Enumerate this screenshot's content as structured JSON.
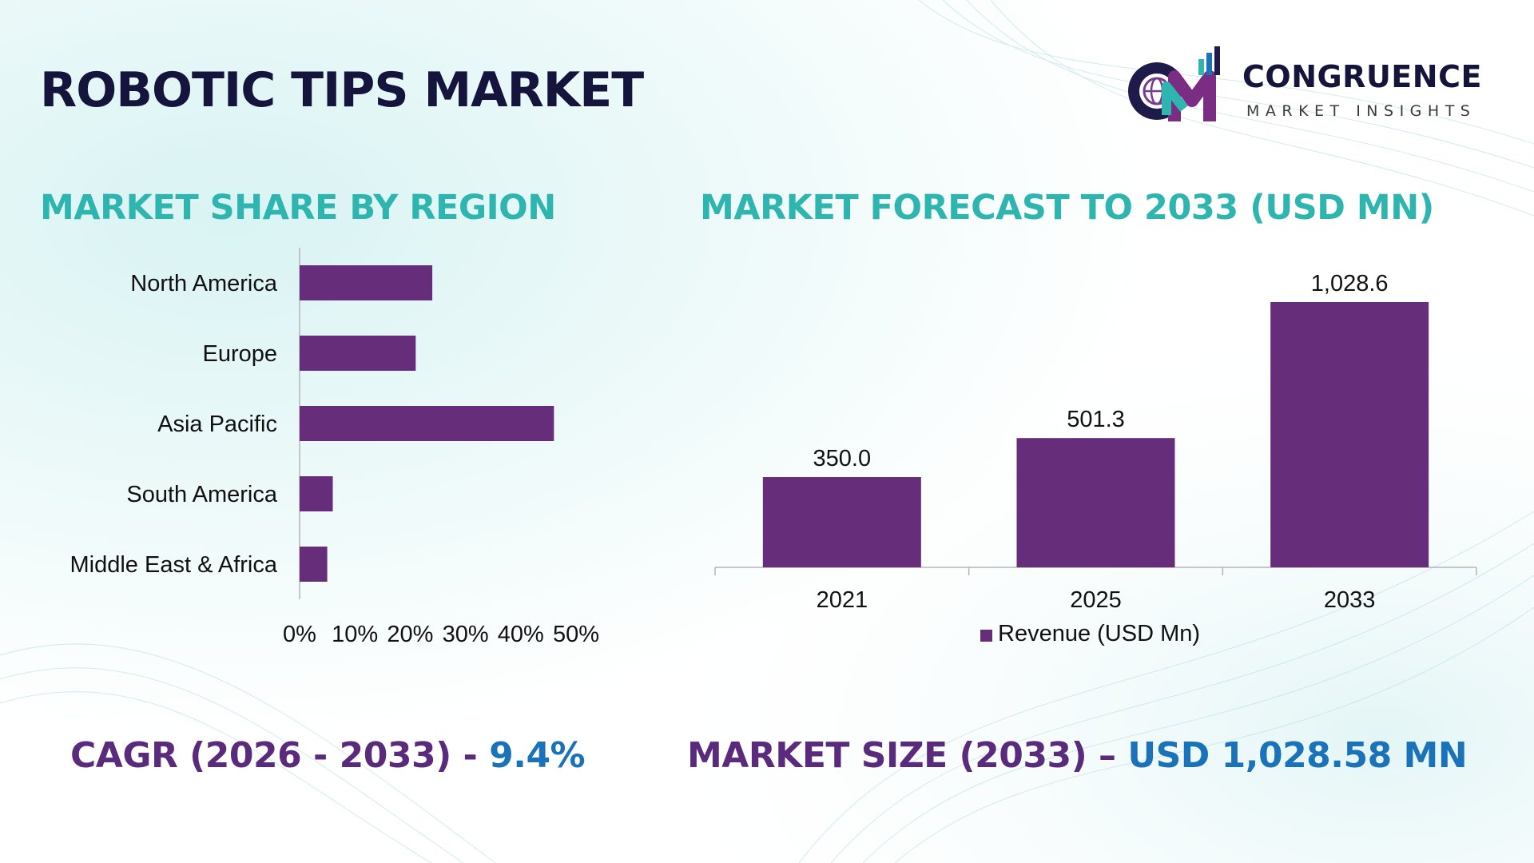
{
  "title": "ROBOTIC TIPS MARKET",
  "colors": {
    "title": "#14143c",
    "section_title": "#2fb5b0",
    "bar": "#652d7a",
    "stat_label": "#5a2a7d",
    "stat_value": "#1a72b8",
    "axis": "#b5b5b5",
    "logo_name": "#14143c",
    "logo_sub": "#3a3a3a"
  },
  "logo": {
    "name": "CONGRUENCE",
    "tagline": "MARKET INSIGHTS",
    "icon": "cm-globe-logo-icon"
  },
  "sections": {
    "region_title": "MARKET SHARE BY REGION",
    "forecast_title": "MARKET FORECAST TO 2033 (USD MN)"
  },
  "stats": {
    "cagr_label": "CAGR (2026 - 2033) - ",
    "cagr_value": "9.4%",
    "size_label": "MARKET SIZE (2033) – ",
    "size_value": "USD 1,028.58 MN"
  },
  "chart_data": [
    {
      "type": "bar",
      "orientation": "horizontal",
      "title": "MARKET SHARE BY REGION",
      "categories": [
        "North America",
        "Europe",
        "Asia Pacific",
        "South America",
        "Middle East & Africa"
      ],
      "values": [
        24,
        21,
        46,
        6,
        5
      ],
      "unit": "%",
      "xlim": [
        0,
        50
      ],
      "xticks": [
        "0%",
        "10%",
        "20%",
        "30%",
        "40%",
        "50%"
      ],
      "grid": false,
      "legend": "none"
    },
    {
      "type": "bar",
      "orientation": "vertical",
      "title": "MARKET FORECAST TO 2033 (USD MN)",
      "categories": [
        "2021",
        "2025",
        "2033"
      ],
      "series": [
        {
          "name": "Revenue (USD Mn)",
          "values": [
            350.0,
            501.3,
            1028.6
          ]
        }
      ],
      "data_labels": [
        "350.0",
        "501.3",
        "1,028.6"
      ],
      "ylim": [
        0,
        1100
      ],
      "grid": false,
      "legend": "bottom"
    }
  ]
}
